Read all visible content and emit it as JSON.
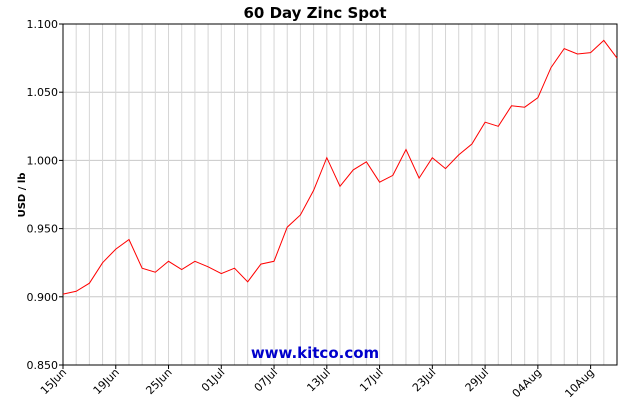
{
  "chart_data": {
    "type": "line",
    "title": "60 Day Zinc Spot",
    "ylabel": "USD / lb",
    "xlabel": "",
    "ylim": [
      0.85,
      1.1
    ],
    "yticks": [
      "1.100",
      "1.050",
      "1.000",
      "0.950",
      "0.900",
      "0.850"
    ],
    "ytick_values": [
      1.1,
      1.05,
      1.0,
      0.95,
      0.9,
      0.85
    ],
    "xticks": [
      "15Jun",
      "19Jun",
      "25Jun",
      "01Jul",
      "07Jul",
      "13Jul",
      "17Jul",
      "23Jul",
      "29Jul",
      "04Aug",
      "10Aug"
    ],
    "grid": true,
    "watermark": "www.kitco.com",
    "line_color": "#ff0000",
    "series": [
      {
        "values": [
          0.902,
          0.904,
          0.91,
          0.925,
          0.935,
          0.942,
          0.921,
          0.918,
          0.926,
          0.92,
          0.926,
          0.922,
          0.917,
          0.921,
          0.911,
          0.924,
          0.926,
          0.951,
          0.96,
          0.978,
          1.002,
          0.981,
          0.993,
          0.999,
          0.984,
          0.989,
          1.008,
          0.987,
          1.002,
          0.994,
          1.004,
          1.012,
          1.028,
          1.025,
          1.04,
          1.039,
          1.046,
          1.068,
          1.082,
          1.078,
          1.079,
          1.088,
          1.075
        ]
      }
    ]
  }
}
